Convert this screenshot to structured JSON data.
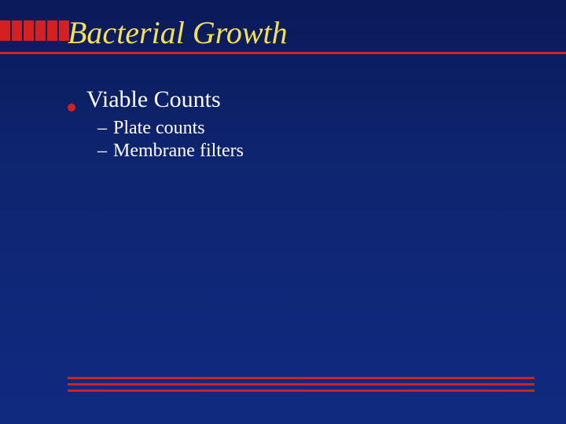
{
  "slide": {
    "title": "Bacterial Growth",
    "title_color": "#f5e050",
    "title_fontsize": 40,
    "title_font_style": "italic",
    "background_gradient": [
      "#0a1a5a",
      "#102a80"
    ],
    "accent_color": "#d62020",
    "text_color": "#ffffff",
    "header_red_block_count": 6,
    "bullets": [
      {
        "text": "Viable Counts",
        "fontsize": 30,
        "subitems": [
          {
            "text": "Plate counts",
            "fontsize": 24
          },
          {
            "text": "Membrane filters",
            "fontsize": 24
          }
        ]
      }
    ],
    "footer_line_count": 3
  }
}
